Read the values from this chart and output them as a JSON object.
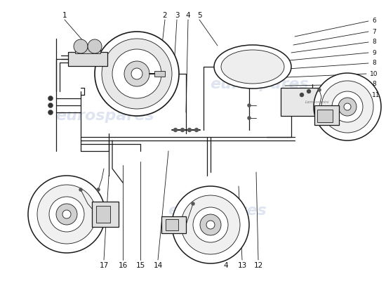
{
  "bg": "#ffffff",
  "lc": "#1a1a1a",
  "wm_color": "#c8d4e8",
  "wm_text": "eurospares",
  "lw": 0.9,
  "tlw": 0.6
}
